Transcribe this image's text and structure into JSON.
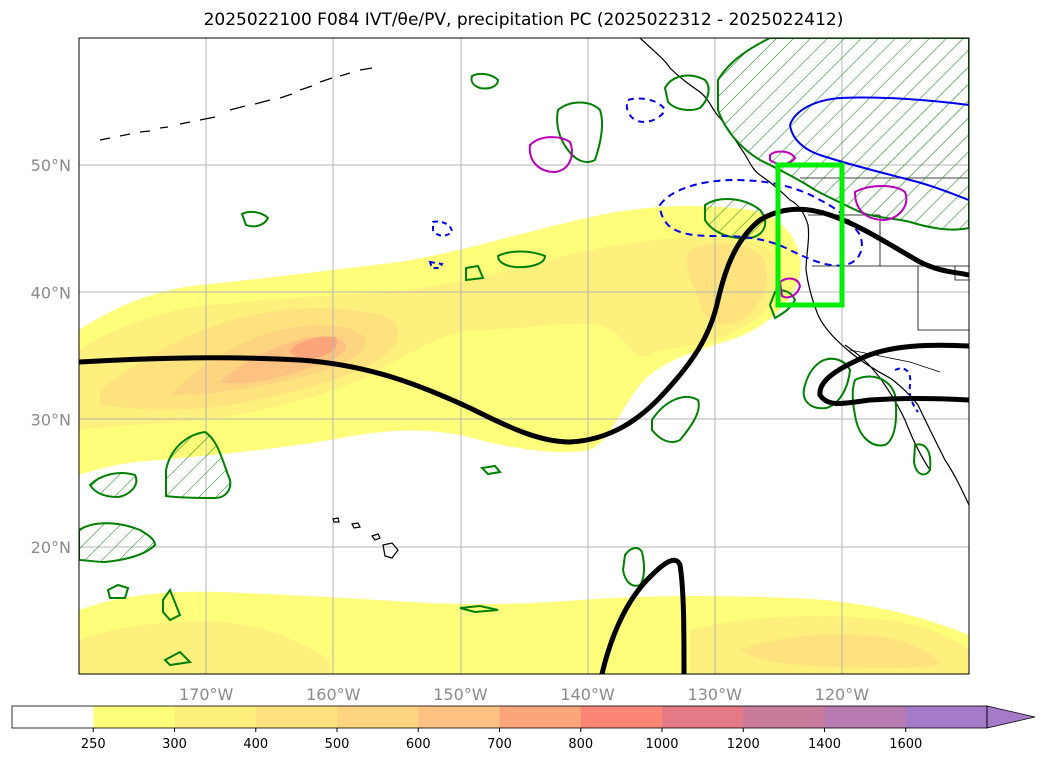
{
  "title": "2025022100 F084 IVT/θe/PV, precipitation PC (2025022312 - 2025022412)",
  "map": {
    "lon_range": [
      -180,
      -110
    ],
    "lat_range": [
      10,
      60
    ],
    "lat_ticks": [
      {
        "value": 50,
        "label": "50°N"
      },
      {
        "value": 40,
        "label": "40°N"
      },
      {
        "value": 30,
        "label": "30°N"
      },
      {
        "value": 20,
        "label": "20°N"
      }
    ],
    "lon_ticks": [
      {
        "value": -170,
        "label": "170°W"
      },
      {
        "value": -160,
        "label": "160°W"
      },
      {
        "value": -150,
        "label": "150°W"
      },
      {
        "value": -140,
        "label": "140°W"
      },
      {
        "value": -130,
        "label": "130°W"
      },
      {
        "value": -120,
        "label": "120°W"
      }
    ],
    "gridlines": true,
    "box": {
      "lon": [
        -125,
        -120
      ],
      "lat": [
        39,
        50
      ],
      "color": "#00ee00"
    },
    "colors": {
      "theta_e": "#000000",
      "pv_pos": "#0000ee",
      "precip": "#008000",
      "pv2": "#bb00bb"
    }
  },
  "colorbar": {
    "extend": "max",
    "levels": [
      "250",
      "300",
      "400",
      "500",
      "600",
      "700",
      "800",
      "1000",
      "1200",
      "1400",
      "1600"
    ],
    "colors": [
      "#ffffff",
      "#fefe7a",
      "#fdf07c",
      "#fde27e",
      "#fdd480",
      "#fdc282",
      "#fda57a",
      "#fc8676",
      "#e47a86",
      "#c87b9b",
      "#b87bb2",
      "#a57bc9"
    ]
  }
}
